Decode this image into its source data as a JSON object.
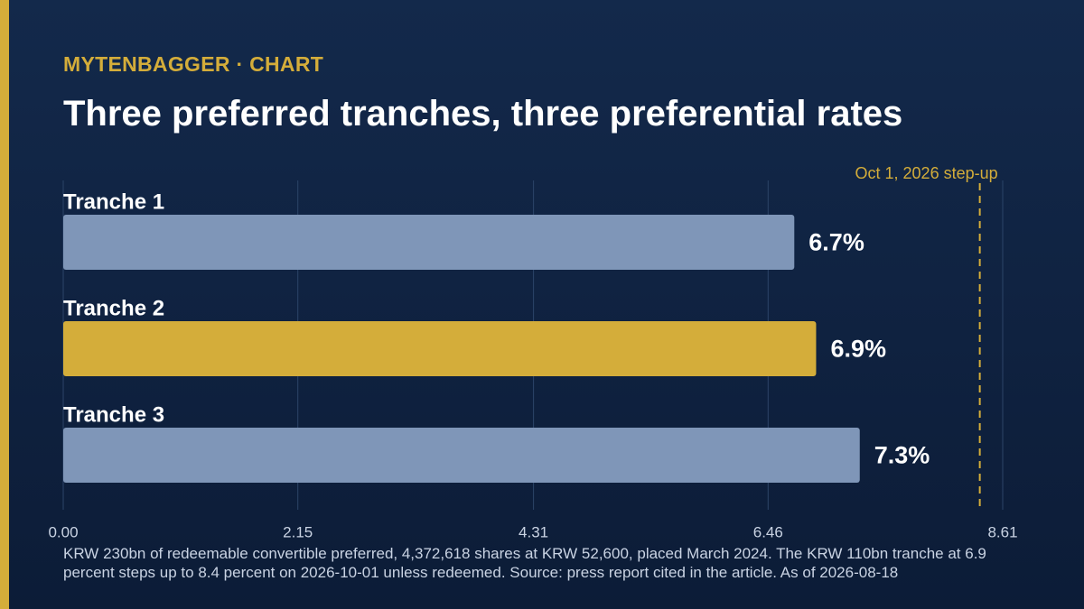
{
  "chart_data": {
    "type": "hbar",
    "kicker": "MYTENBAGGER · CHART",
    "title": "Three preferred tranches, three preferential rates",
    "note": "KRW 230bn of redeemable convertible preferred, 4,372,618 shares at KRW 52,600, placed March 2024. The KRW 110bn tranche at 6.9 percent steps up to 8.4 percent on 2026-10-01 unless redeemed. Source: press report cited in the article. As of 2026-08-18",
    "categories": [
      "Tranche 1",
      "Tranche 2",
      "Tranche 3"
    ],
    "values": [
      6.7,
      6.9,
      7.3
    ],
    "value_labels": [
      "6.7%",
      "6.9%",
      "7.3%"
    ],
    "colors": [
      "#7f96b8",
      "#d4ad3a",
      "#7f96b8"
    ],
    "xlim": [
      0,
      8.61
    ],
    "xticks": [
      {
        "value": 0,
        "label": "0.00"
      },
      2.15,
      4.31,
      6.46,
      8.61
    ],
    "grid": true,
    "reference_line": {
      "value": 8.4,
      "label": "Oct 1, 2026 step-up",
      "color": "#d4ad3a"
    }
  }
}
